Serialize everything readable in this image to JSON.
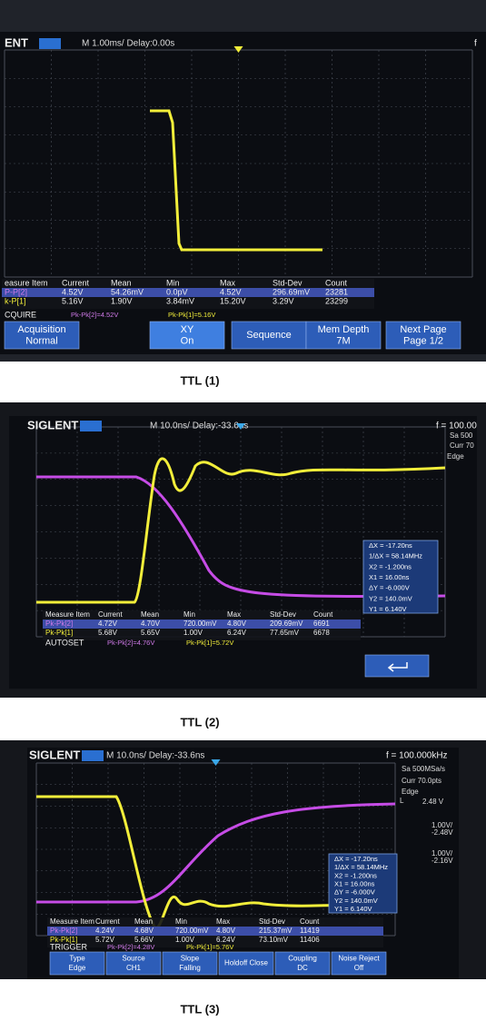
{
  "panels": [
    {
      "caption": "TTL (1)",
      "brand": "ENT",
      "timebase": "M 1.00ms/ Delay:0.00s",
      "freq": "f",
      "measure": {
        "header": [
          "easure Item",
          "Current",
          "Mean",
          "Min",
          "Max",
          "Std-Dev",
          "Count"
        ],
        "rows": [
          [
            "P-P[2]",
            "4.52V",
            "54.26mV",
            "0.0pV",
            "4.52V",
            "296.69mV",
            "23281"
          ],
          [
            "k-P[1]",
            "5.16V",
            "1.90V",
            "3.84mV",
            "15.20V",
            "3.29V",
            "23299"
          ]
        ]
      },
      "status": [
        "CQUIRE",
        "Pk-Pk[2]=4.52V",
        "Pk-Pk[1]=5.16V"
      ],
      "softkeys": [
        {
          "label": "Acquisition",
          "value": "Normal"
        },
        {
          "label": "XY",
          "value": "On"
        },
        {
          "label": "Sequence"
        },
        {
          "label": "Mem Depth",
          "value": "7M"
        },
        {
          "label": "Next Page",
          "value": "Page 1/2"
        }
      ]
    },
    {
      "caption": "TTL (2)",
      "brand": "SIGLENT",
      "timebase": "M 10.0ns/ Delay:-33.6ns",
      "freq": "f = 100.00",
      "side": [
        "Sa 500",
        "Curr 70",
        "Edge"
      ],
      "cursor": [
        "ΔX = -17.20ns",
        "1/ΔX = 58.14MHz",
        "X2 = -1.200ns",
        "X1 = 16.00ns",
        "ΔY = -6.000V",
        "Y2 = 140.0mV",
        "Y1 = 6.140V"
      ],
      "measure": {
        "header": [
          "Measure Item",
          "Current",
          "Mean",
          "Min",
          "Max",
          "Std-Dev",
          "Count"
        ],
        "rows": [
          [
            "Pk-Pk[2]",
            "4.72V",
            "4.70V",
            "720.00mV",
            "4.80V",
            "209.69mV",
            "6691"
          ],
          [
            "Pk-Pk[1]",
            "5.68V",
            "5.65V",
            "1.00V",
            "6.24V",
            "77.65mV",
            "6678"
          ]
        ]
      },
      "status": [
        "AUTOSET",
        "Pk-Pk[2]=4.76V",
        "Pk-Pk[1]=5.72V"
      ]
    },
    {
      "caption": "TTL (3)",
      "brand": "SIGLENT",
      "timebase": "M 10.0ns/ Delay:-33.6ns",
      "freq": "f = 100.000kHz",
      "side": [
        "Sa 500MSa/s",
        "Curr 70.0pts",
        "Edge",
        "L",
        "2.48 V",
        "1.00V/",
        "-2.48V",
        "1.00V/",
        "-2.16V"
      ],
      "cursor": [
        "ΔX = -17.20ns",
        "1/ΔX = 58.14MHz",
        "X2 = -1.200ns",
        "X1 = 16.00ns",
        "ΔY = -6.000V",
        "Y2 = 140.0mV",
        "Y1 = 6.140V"
      ],
      "measure": {
        "header": [
          "Measure Item",
          "Current",
          "Mean",
          "Min",
          "Max",
          "Std-Dev",
          "Count"
        ],
        "rows": [
          [
            "Pk-Pk[2]",
            "4.24V",
            "4.68V",
            "720.00mV",
            "4.80V",
            "215.37mV",
            "11419"
          ],
          [
            "Pk-Pk[1]",
            "5.72V",
            "5.66V",
            "1.00V",
            "6.24V",
            "73.10mV",
            "11406"
          ]
        ]
      },
      "status": [
        "TRIGGER",
        "Pk-Pk[2]=4.28V",
        "Pk-Pk[1]=5.76V"
      ],
      "softkeys": [
        {
          "label": "Type",
          "value": "Edge"
        },
        {
          "label": "Source",
          "value": "CH1"
        },
        {
          "label": "Slope",
          "value": "Falling"
        },
        {
          "label": "Holdoff Close"
        },
        {
          "label": "Coupling",
          "value": "DC"
        },
        {
          "label": "Noise Reject",
          "value": "Off"
        }
      ]
    }
  ]
}
